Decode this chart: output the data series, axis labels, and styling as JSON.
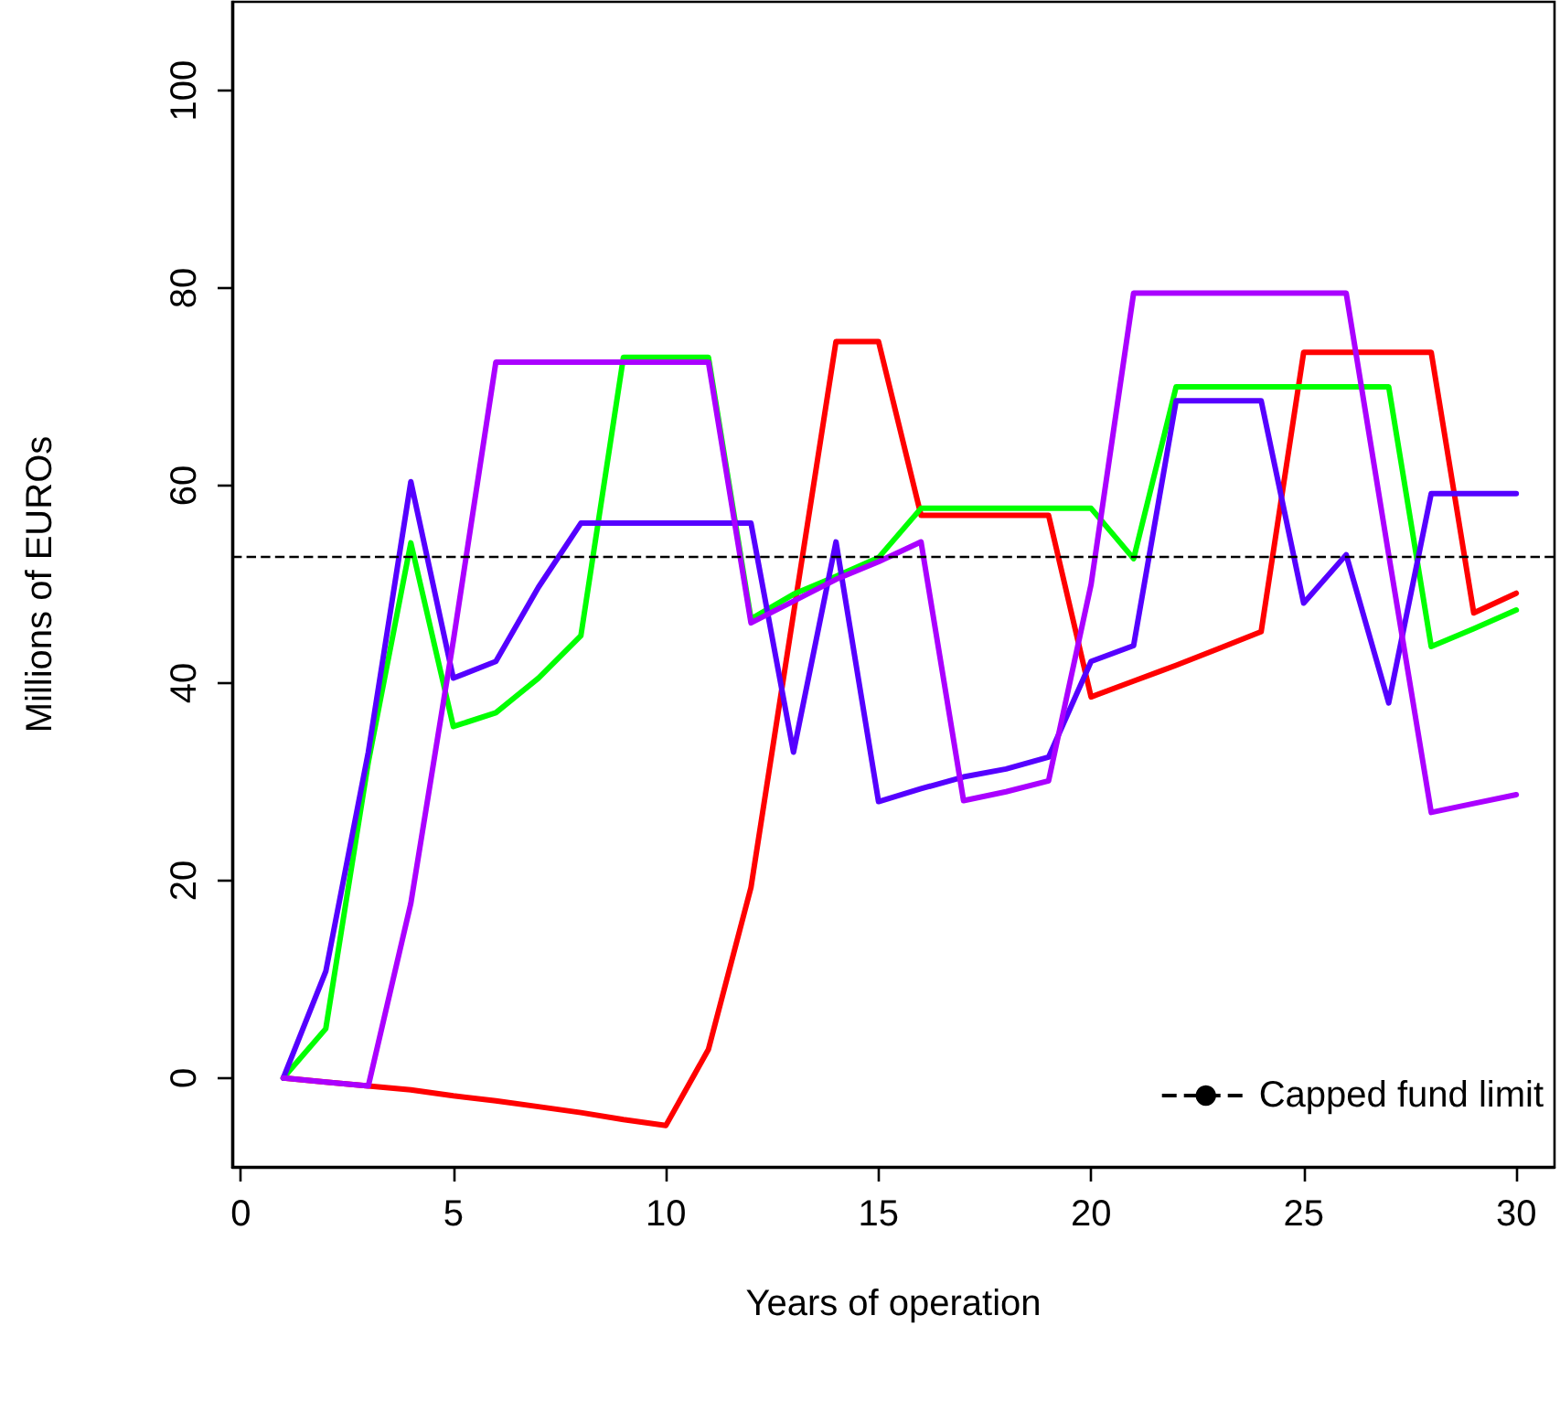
{
  "chart_data": {
    "type": "line",
    "xlabel": "Years of operation",
    "ylabel": "Millions of EUROs",
    "x": [
      1,
      2,
      3,
      4,
      5,
      6,
      7,
      8,
      9,
      10,
      11,
      12,
      13,
      14,
      15,
      16,
      17,
      18,
      19,
      20,
      21,
      22,
      23,
      24,
      25,
      26,
      27,
      28,
      29,
      30
    ],
    "series": [
      {
        "color": "#ff0000",
        "values": [
          0,
          -0.4,
          -0.8,
          -1.2,
          -1.8,
          -2.3,
          -2.9,
          -3.5,
          -4.2,
          -4.8,
          2.9,
          19.3,
          47,
          74.6,
          74.6,
          57,
          57,
          57,
          57,
          38.6,
          40.2,
          41.8,
          43.5,
          45.2,
          73.5,
          73.5,
          73.5,
          73.5,
          47.1,
          49.1
        ]
      },
      {
        "color": "#00ff00",
        "values": [
          0,
          5,
          32,
          54.2,
          35.6,
          37,
          40.5,
          44.8,
          73,
          73,
          73,
          46.5,
          49,
          50.8,
          52.7,
          57.7,
          57.7,
          57.7,
          57.7,
          57.7,
          52.6,
          70,
          70,
          70,
          70,
          70,
          70,
          43.7,
          45.5,
          47.4
        ]
      },
      {
        "color": "#5500ff",
        "values": [
          0,
          10.8,
          33,
          60.4,
          40.5,
          42.2,
          49.7,
          56.2,
          56.2,
          56.2,
          56.2,
          56.2,
          33,
          54.3,
          28,
          29.3,
          30.5,
          31.3,
          32.5,
          42.2,
          43.8,
          68.6,
          68.6,
          68.6,
          48.1,
          53,
          38,
          59.2,
          59.2,
          59.2
        ]
      },
      {
        "color": "#aa00ff",
        "values": [
          0,
          -0.4,
          -0.8,
          17.7,
          44.3,
          72.5,
          72.5,
          72.5,
          72.5,
          72.5,
          72.5,
          46.1,
          48.3,
          50.5,
          52.3,
          54.3,
          28.1,
          29,
          30.1,
          50,
          79.5,
          79.5,
          79.5,
          79.5,
          79.5,
          79.5,
          53,
          26.9,
          27.8,
          28.7
        ]
      }
    ],
    "ref_lines": [
      {
        "axis": "y",
        "value": 52.8,
        "label": "Capped fund limit",
        "color": "#000000",
        "line_style": "dashed"
      }
    ],
    "xlim": [
      -0.2,
      30.9
    ],
    "xticks": [
      0,
      5,
      10,
      15,
      20,
      25,
      30
    ],
    "ylim": [
      -9,
      109
    ],
    "yticks": [
      0,
      20,
      40,
      60,
      80,
      100
    ],
    "grid": false,
    "legend": "bottom right",
    "marker": "none",
    "line_style": "solid"
  }
}
